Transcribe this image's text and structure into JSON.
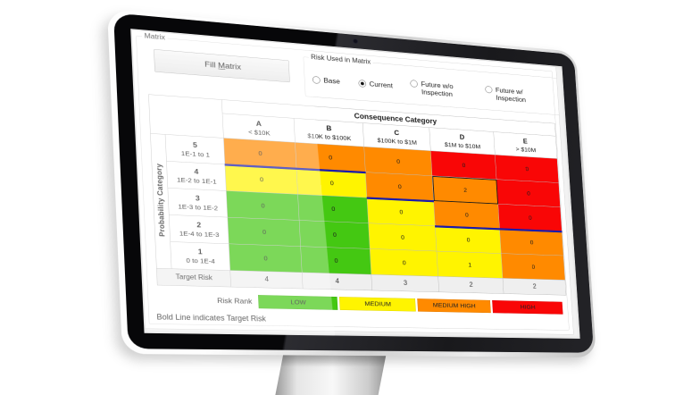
{
  "app": {
    "group_label": "Matrix",
    "footnote": "Bold Line indicates Target Risk"
  },
  "fill_button": {
    "prefix": "Fill ",
    "accel": "M",
    "suffix": "atrix"
  },
  "risk_used": {
    "title": "Risk Used in Matrix",
    "options": [
      {
        "label": "Base",
        "selected": false
      },
      {
        "label": "Current",
        "selected": true
      },
      {
        "label": "Future w/o Inspection",
        "selected": false
      },
      {
        "label": "Future w/ Inspection",
        "selected": false
      }
    ]
  },
  "matrix": {
    "consequence_title": "Consequence Category",
    "probability_title": "Probability Category",
    "columns": [
      {
        "letter": "A",
        "range": "< $10K"
      },
      {
        "letter": "B",
        "range": "$10K to $100K"
      },
      {
        "letter": "C",
        "range": "$100K to $1M"
      },
      {
        "letter": "D",
        "range": "$1M to $10M"
      },
      {
        "letter": "E",
        "range": "> $10M"
      }
    ],
    "rows": [
      {
        "number": "5",
        "range": "1E-1 to 1",
        "cells": [
          {
            "v": "0",
            "c": "medium_high"
          },
          {
            "v": "0",
            "c": "medium_high"
          },
          {
            "v": "0",
            "c": "medium_high"
          },
          {
            "v": "0",
            "c": "high"
          },
          {
            "v": "0",
            "c": "high"
          }
        ]
      },
      {
        "number": "4",
        "range": "1E-2 to 1E-1",
        "cells": [
          {
            "v": "0",
            "c": "medium",
            "tl": true
          },
          {
            "v": "0",
            "c": "medium",
            "tl": true
          },
          {
            "v": "0",
            "c": "medium_high"
          },
          {
            "v": "2",
            "c": "medium_high",
            "sel": true
          },
          {
            "v": "0",
            "c": "high"
          }
        ]
      },
      {
        "number": "3",
        "range": "1E-3 to 1E-2",
        "cells": [
          {
            "v": "0",
            "c": "low"
          },
          {
            "v": "0",
            "c": "low"
          },
          {
            "v": "0",
            "c": "medium",
            "tl": true
          },
          {
            "v": "0",
            "c": "medium_high"
          },
          {
            "v": "0",
            "c": "high"
          }
        ]
      },
      {
        "number": "2",
        "range": "1E-4 to 1E-3",
        "cells": [
          {
            "v": "0",
            "c": "low"
          },
          {
            "v": "0",
            "c": "low"
          },
          {
            "v": "0",
            "c": "medium"
          },
          {
            "v": "0",
            "c": "medium",
            "tl": true
          },
          {
            "v": "0",
            "c": "medium_high",
            "tl": true
          }
        ]
      },
      {
        "number": "1",
        "range": "0 to 1E-4",
        "cells": [
          {
            "v": "0",
            "c": "low"
          },
          {
            "v": "0",
            "c": "low"
          },
          {
            "v": "0",
            "c": "medium"
          },
          {
            "v": "1",
            "c": "medium"
          },
          {
            "v": "0",
            "c": "medium_high"
          }
        ]
      }
    ],
    "target_label": "Target Risk",
    "target_values": [
      "4",
      "4",
      "3",
      "2",
      "2"
    ]
  },
  "legend": {
    "label": "Risk Rank",
    "items": [
      {
        "label": "LOW",
        "color_key": "low"
      },
      {
        "label": "MEDIUM",
        "color_key": "medium"
      },
      {
        "label": "MEDIUM HIGH",
        "color_key": "medium_high"
      },
      {
        "label": "HIGH",
        "color_key": "high"
      }
    ]
  },
  "colors": {
    "low": "#44C812",
    "medium": "#FFF400",
    "medium_high": "#FF8A00",
    "high": "#F90606",
    "target_line": "#1B1BAA"
  }
}
